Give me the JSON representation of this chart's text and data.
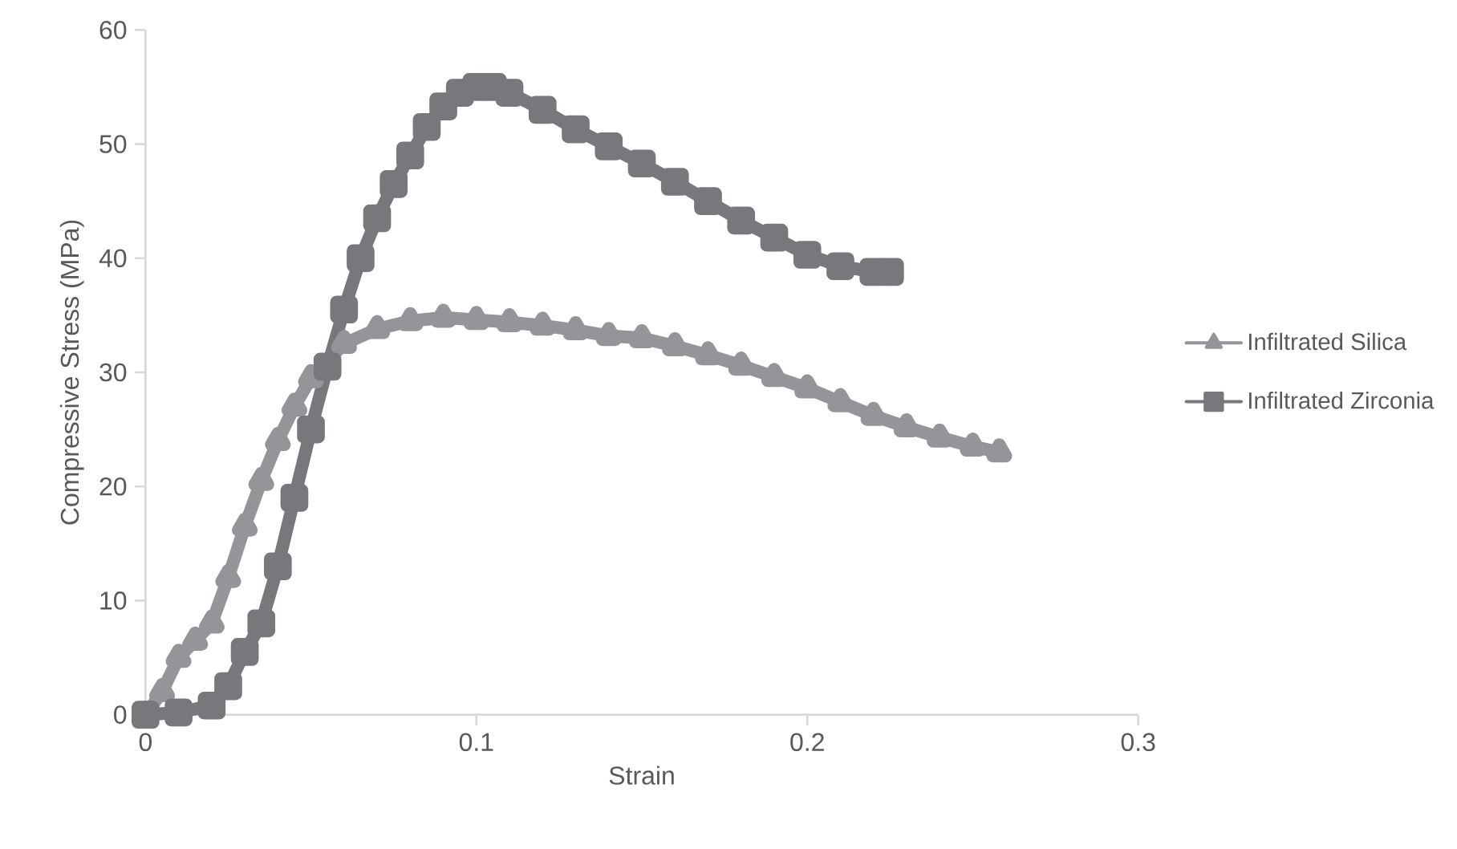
{
  "chart_data": {
    "type": "line",
    "xlabel": "Strain",
    "ylabel": "Compressive Stress (MPa)",
    "xlim": [
      0,
      0.3
    ],
    "ylim": [
      0,
      60
    ],
    "xticks": [
      0,
      0.1,
      0.2,
      0.3
    ],
    "yticks": [
      0,
      10,
      20,
      30,
      40,
      50,
      60
    ],
    "grid": false,
    "legend": "right",
    "series": [
      {
        "name": "Infiltrated Silica",
        "color": "#939598",
        "marker": "triangle",
        "x": [
          0,
          0.005,
          0.01,
          0.015,
          0.02,
          0.025,
          0.03,
          0.035,
          0.04,
          0.045,
          0.05,
          0.06,
          0.07,
          0.08,
          0.09,
          0.1,
          0.11,
          0.12,
          0.13,
          0.14,
          0.15,
          0.16,
          0.17,
          0.18,
          0.19,
          0.2,
          0.21,
          0.22,
          0.23,
          0.24,
          0.25,
          0.258
        ],
        "values": [
          0,
          2,
          5,
          6.5,
          8,
          12,
          16.5,
          20.5,
          24,
          27,
          29.5,
          32.5,
          33.8,
          34.5,
          34.8,
          34.6,
          34.4,
          34.1,
          33.7,
          33.2,
          33,
          32.3,
          31.5,
          30.6,
          29.6,
          28.6,
          27.4,
          26.2,
          25.2,
          24.3,
          23.5,
          23
        ]
      },
      {
        "name": "Infiltrated Zirconia",
        "color": "#77787b",
        "marker": "square",
        "x": [
          0,
          0.01,
          0.02,
          0.025,
          0.03,
          0.035,
          0.04,
          0.045,
          0.05,
          0.055,
          0.06,
          0.065,
          0.07,
          0.075,
          0.08,
          0.085,
          0.09,
          0.095,
          0.1,
          0.105,
          0.11,
          0.12,
          0.13,
          0.14,
          0.15,
          0.16,
          0.17,
          0.18,
          0.19,
          0.2,
          0.21,
          0.22,
          0.225
        ],
        "values": [
          0,
          0.2,
          0.8,
          2.5,
          5.5,
          8,
          13,
          19,
          25,
          30.5,
          35.5,
          40,
          43.5,
          46.5,
          49,
          51.5,
          53.3,
          54.5,
          55,
          55,
          54.5,
          53,
          51.3,
          49.8,
          48.3,
          46.7,
          45,
          43.3,
          41.8,
          40.3,
          39.3,
          38.8,
          38.8
        ]
      }
    ]
  }
}
